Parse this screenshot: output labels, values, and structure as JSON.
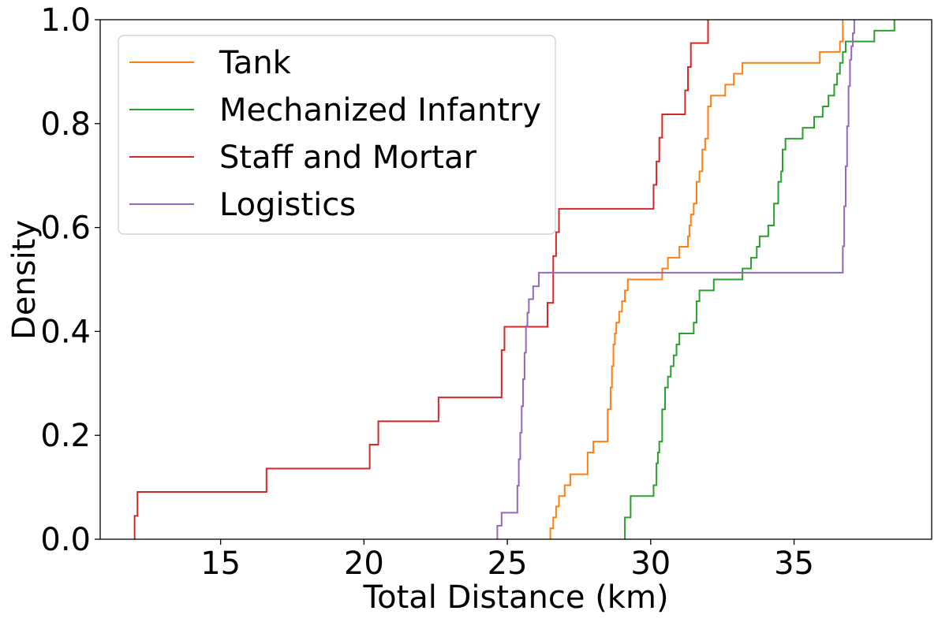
{
  "chart_data": {
    "type": "line",
    "subtype": "ecdf-step",
    "xlabel": "Total Distance (km)",
    "ylabel": "Density",
    "xlim": [
      10.8,
      39.8
    ],
    "ylim": [
      0.0,
      1.0
    ],
    "xticks": [
      15,
      20,
      25,
      30,
      35
    ],
    "xtick_labels": [
      "15",
      "20",
      "25",
      "30",
      "35"
    ],
    "yticks": [
      0.0,
      0.2,
      0.4,
      0.6,
      0.8,
      1.0
    ],
    "ytick_labels": [
      "0.0",
      "0.2",
      "0.4",
      "0.6",
      "0.8",
      "1.0"
    ],
    "grid": false,
    "legend_position": "upper-left",
    "series": [
      {
        "name": "Tank",
        "color": "#ff7f0e",
        "x": [
          26.5,
          26.6,
          26.7,
          26.8,
          27.0,
          27.2,
          27.3,
          27.8,
          28.0,
          28.5,
          28.6,
          28.65,
          28.7,
          28.75,
          28.8,
          28.9,
          29.0,
          29.1,
          29.2,
          29.3,
          29.4,
          30.4,
          30.6,
          31.0,
          31.3,
          31.35,
          31.4,
          31.5,
          31.6,
          31.7,
          31.8,
          31.9,
          32.0,
          32.1,
          32.3,
          32.6,
          32.9,
          33.2,
          33.5,
          33.7,
          35.9,
          36.6,
          36.7
        ],
        "y": [
          0.021,
          0.042,
          0.063,
          0.083,
          0.104,
          0.125,
          0.125,
          0.167,
          0.188,
          0.25,
          0.292,
          0.333,
          0.375,
          0.396,
          0.417,
          0.438,
          0.458,
          0.479,
          0.5,
          0.5,
          0.5,
          0.521,
          0.542,
          0.563,
          0.583,
          0.604,
          0.625,
          0.646,
          0.688,
          0.708,
          0.75,
          0.771,
          0.833,
          0.854,
          0.854,
          0.875,
          0.896,
          0.917,
          0.917,
          0.917,
          0.938,
          0.958,
          1.0
        ]
      },
      {
        "name": "Mechanized Infantry",
        "color": "#2ca02c",
        "x": [
          29.1,
          29.3,
          29.5,
          30.1,
          30.2,
          30.25,
          30.3,
          30.4,
          30.5,
          30.6,
          30.7,
          30.8,
          30.9,
          31.0,
          31.1,
          31.5,
          31.6,
          31.7,
          32.2,
          33.1,
          33.2,
          33.5,
          33.7,
          33.8,
          34.1,
          34.3,
          34.45,
          34.55,
          34.6,
          34.7,
          34.9,
          35.3,
          35.7,
          36.0,
          36.2,
          36.4,
          36.5,
          36.6,
          36.7,
          36.8,
          36.9,
          37.8,
          38.0,
          38.5
        ],
        "y": [
          0.042,
          0.083,
          0.083,
          0.104,
          0.146,
          0.167,
          0.188,
          0.25,
          0.292,
          0.313,
          0.333,
          0.354,
          0.375,
          0.396,
          0.396,
          0.417,
          0.458,
          0.479,
          0.5,
          0.5,
          0.521,
          0.542,
          0.563,
          0.583,
          0.604,
          0.646,
          0.688,
          0.708,
          0.75,
          0.771,
          0.771,
          0.792,
          0.813,
          0.833,
          0.854,
          0.875,
          0.896,
          0.917,
          0.938,
          0.958,
          0.958,
          0.979,
          0.979,
          1.0
        ]
      },
      {
        "name": "Staff and Mortar",
        "color": "#d62728",
        "x": [
          12.0,
          12.1,
          16.6,
          20.2,
          20.5,
          22.6,
          24.8,
          24.9,
          26.4,
          26.6,
          26.7,
          26.8,
          30.1,
          30.2,
          30.3,
          30.4,
          31.2,
          31.3,
          31.4,
          31.9,
          32.0
        ],
        "y": [
          0.045,
          0.091,
          0.136,
          0.182,
          0.227,
          0.273,
          0.364,
          0.409,
          0.455,
          0.545,
          0.591,
          0.636,
          0.682,
          0.727,
          0.773,
          0.818,
          0.864,
          0.909,
          0.955,
          0.955,
          1.0
        ]
      },
      {
        "name": "Logistics",
        "color": "#9467bd",
        "x": [
          24.65,
          24.8,
          25.35,
          25.4,
          25.45,
          25.5,
          25.55,
          25.6,
          25.65,
          25.7,
          25.75,
          25.8,
          25.9,
          26.0,
          26.1,
          36.6,
          36.7,
          36.75,
          36.8,
          36.85,
          36.9,
          36.95,
          37.0,
          37.05,
          37.1
        ],
        "y": [
          0.026,
          0.051,
          0.103,
          0.154,
          0.205,
          0.256,
          0.308,
          0.359,
          0.41,
          0.436,
          0.462,
          0.462,
          0.487,
          0.487,
          0.513,
          0.513,
          0.564,
          0.641,
          0.718,
          0.795,
          0.872,
          0.923,
          0.949,
          0.974,
          1.0
        ]
      }
    ]
  }
}
